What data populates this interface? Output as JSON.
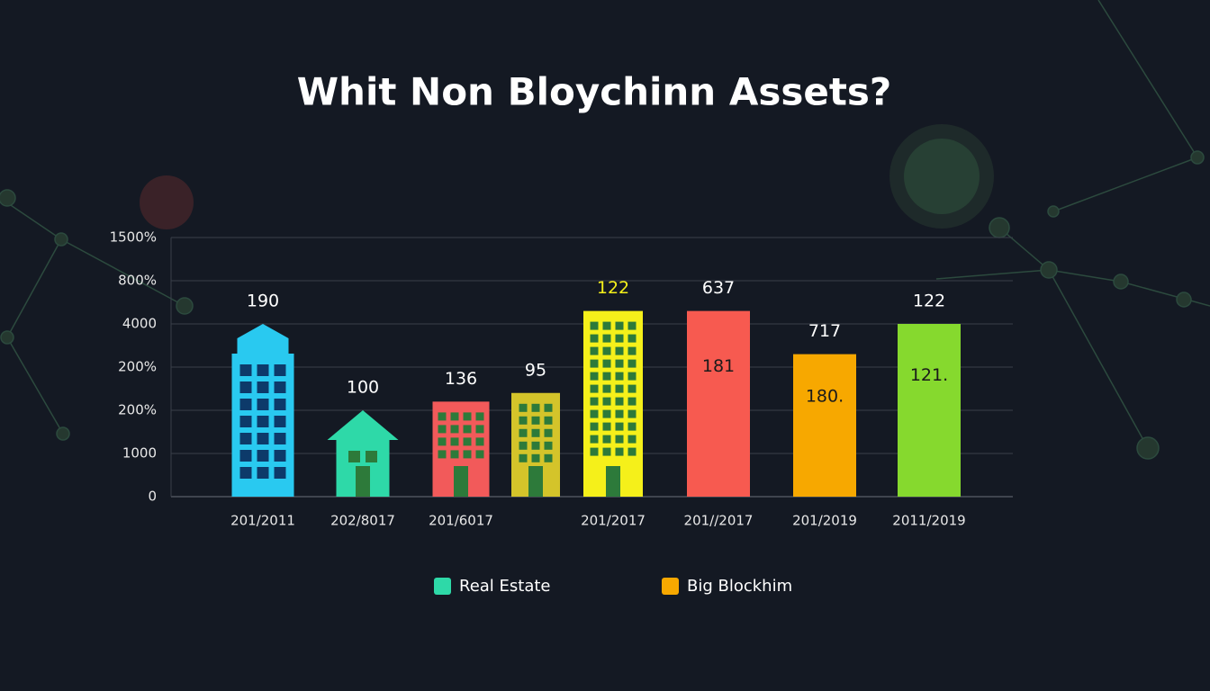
{
  "chart_data": {
    "type": "bar",
    "title": "Whit Non Bloychinn Assets?",
    "categories": [
      "201/2011",
      "202/8017",
      "201/6017",
      null,
      "201/2017",
      "201//2017",
      "201/2019",
      "2011/2019"
    ],
    "values": [
      4.0,
      2.0,
      2.2,
      2.4,
      4.3,
      4.3,
      3.3,
      4.0
    ],
    "value_labels": [
      "190",
      "100",
      "136",
      "95",
      "122",
      "637",
      "717",
      "122"
    ],
    "inner_labels": [
      null,
      null,
      null,
      null,
      null,
      "181",
      "180.",
      "121."
    ],
    "colors": [
      "#29c9f0",
      "#2ed9a8",
      "#f25a5a",
      "#d4c42a",
      "#f5f01a",
      "#f75a50",
      "#f7a800",
      "#86d92e"
    ],
    "label_colors": [
      "#ffffff",
      "#ffffff",
      "#ffffff",
      "#ffffff",
      "#f5f01a",
      "#ffffff",
      "#ffffff",
      "#ffffff"
    ],
    "shapes": [
      "tower",
      "house",
      "building",
      "building",
      "building",
      "bar",
      "bar",
      "bar"
    ],
    "ylim": [
      0,
      6
    ],
    "yticks": [
      {
        "value": 0,
        "label": "0"
      },
      {
        "value": 1,
        "label": "1000"
      },
      {
        "value": 2,
        "label": "200%"
      },
      {
        "value": 3,
        "label": "200%"
      },
      {
        "value": 4,
        "label": "4000"
      },
      {
        "value": 5,
        "label": "800%"
      },
      {
        "value": 6,
        "label": "1500%"
      }
    ],
    "grid": true,
    "legend": [
      {
        "name": "Real Estate",
        "color": "#2ed9a8"
      },
      {
        "name": "Big Blockhim",
        "color": "#f7a800"
      }
    ]
  }
}
